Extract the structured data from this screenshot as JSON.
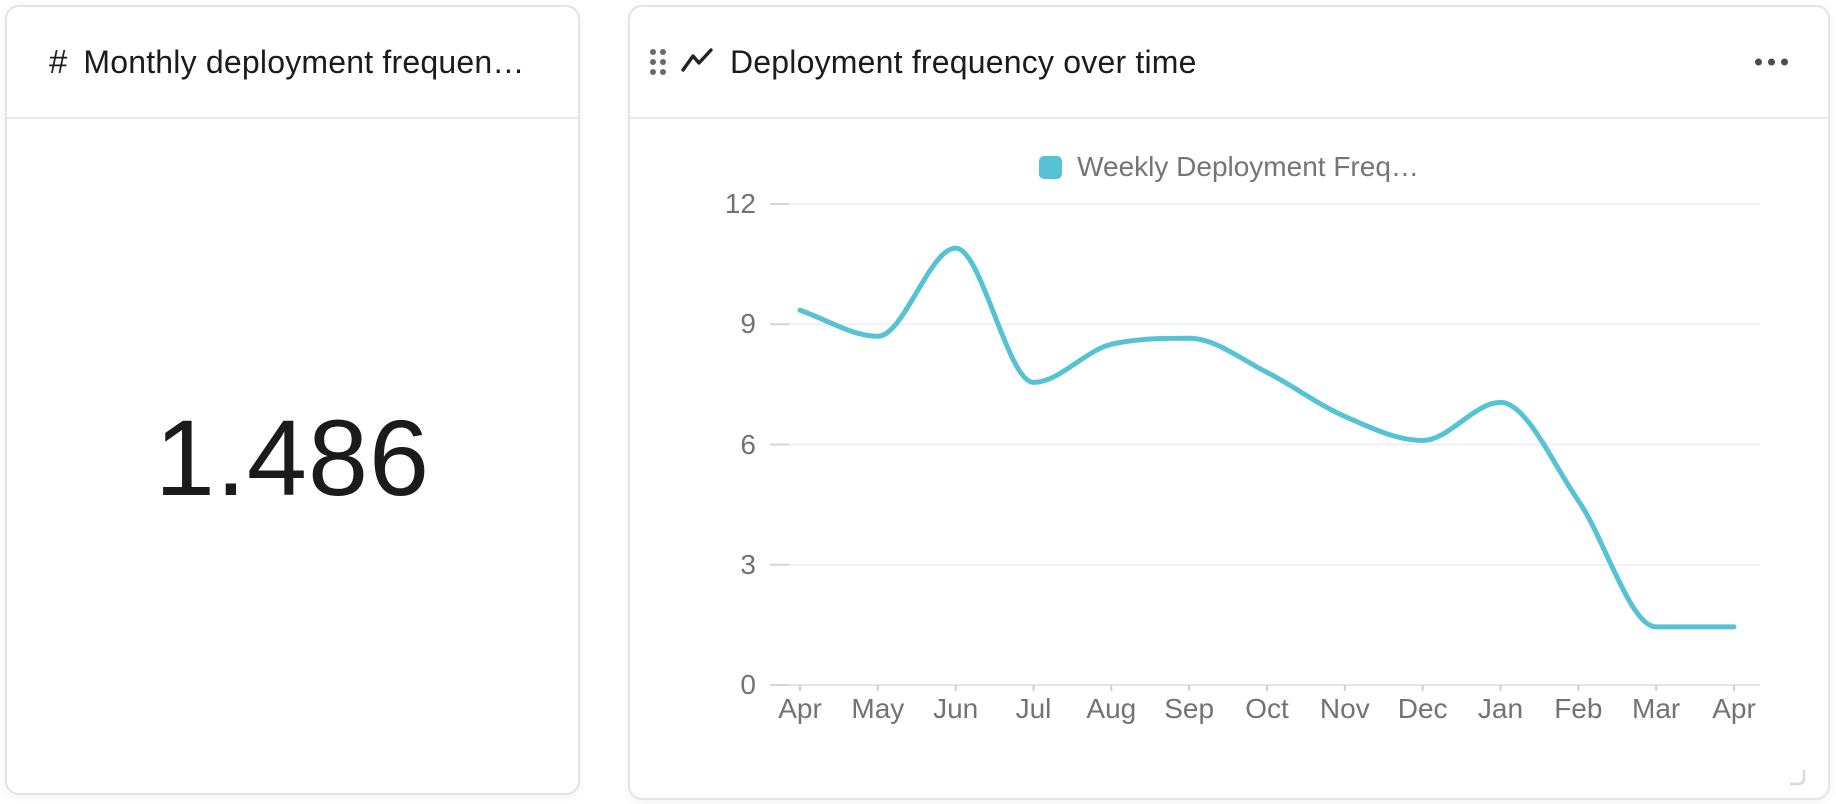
{
  "colors": {
    "accent": "#57c2d5",
    "text_primary": "#1b1b1b",
    "text_secondary": "#737373",
    "grid": "#ededed",
    "axis": "#dcdcdc",
    "tick": "#cfcfcf"
  },
  "number_card": {
    "icon": "#",
    "title": "Monthly deployment frequen…",
    "value": "1.486"
  },
  "chart_card": {
    "icons": {
      "drag_handle": "drag-handle-dots",
      "title_icon": "line-chart-zigzag",
      "menu": "ellipsis-more-options",
      "resize": "corner-resize"
    },
    "title": "Deployment frequency over time"
  },
  "chart_data": {
    "type": "line",
    "title": "Deployment frequency over time",
    "categories": [
      "Apr",
      "May",
      "Jun",
      "Jul",
      "Aug",
      "Sep",
      "Oct",
      "Nov",
      "Dec",
      "Jan",
      "Feb",
      "Mar",
      "Apr"
    ],
    "series": [
      {
        "name": "Weekly Deployment Freq…",
        "color": "#57c2d5",
        "values": [
          9.35,
          8.7,
          10.9,
          7.55,
          8.5,
          8.65,
          7.8,
          6.7,
          6.1,
          7.05,
          4.6,
          1.45,
          1.45
        ]
      }
    ],
    "y_ticks": [
      0,
      3,
      6,
      9,
      12
    ],
    "ylim": [
      0,
      12
    ],
    "grid": true,
    "smooth": true,
    "legend_position": "top"
  }
}
